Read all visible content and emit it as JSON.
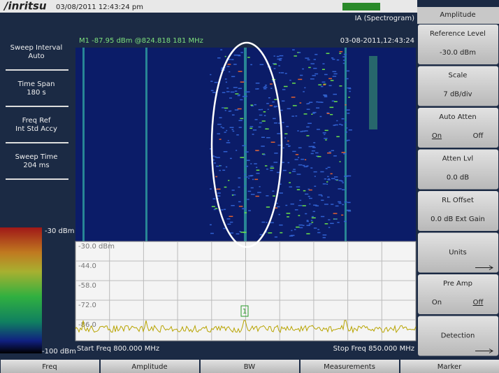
{
  "header": {
    "logo": "/inritsu",
    "datetime": "03/08/2011 12:43:24 pm",
    "mode": "IA (Spectrogram)",
    "timestamp": "03-08-2011,12:43:24",
    "marker_readout": "M1 -87.95 dBm @824.818 181 MHz"
  },
  "left_panel": [
    {
      "label": "Sweep Interval",
      "value": "Auto"
    },
    {
      "label": "Time Span",
      "value": "180 s"
    },
    {
      "label": "Freq Ref",
      "value": "Int Std Accy"
    },
    {
      "label": "Sweep Time",
      "value": "204 ms"
    }
  ],
  "color_scale": {
    "top": "-30 dBm",
    "bottom": "-100 dBm"
  },
  "trace": {
    "levels": [
      "-30.0 dBm",
      "-44.0",
      "-58.0",
      "-72.0",
      "-86.0"
    ],
    "marker": "1",
    "start": "Start Freq 800.000 MHz",
    "stop": "Stop Freq 850.000 MHz"
  },
  "menu": {
    "title": "Amplitude",
    "buttons": [
      {
        "label": "Reference Level",
        "value": "-30.0 dBm"
      },
      {
        "label": "Scale",
        "value": "7 dB/div"
      },
      {
        "label": "Auto Atten",
        "on": "On",
        "off": "Off"
      },
      {
        "label": "Atten Lvl",
        "value": "0.0 dB"
      },
      {
        "label": "RL Offset",
        "value": "0.0 dB Ext Gain"
      },
      {
        "label": "Units"
      },
      {
        "label": "Pre Amp",
        "on": "On",
        "off": "Off"
      },
      {
        "label": "Detection"
      }
    ]
  },
  "tabs": [
    "Freq",
    "Amplitude",
    "BW",
    "Measurements",
    "Marker"
  ]
}
